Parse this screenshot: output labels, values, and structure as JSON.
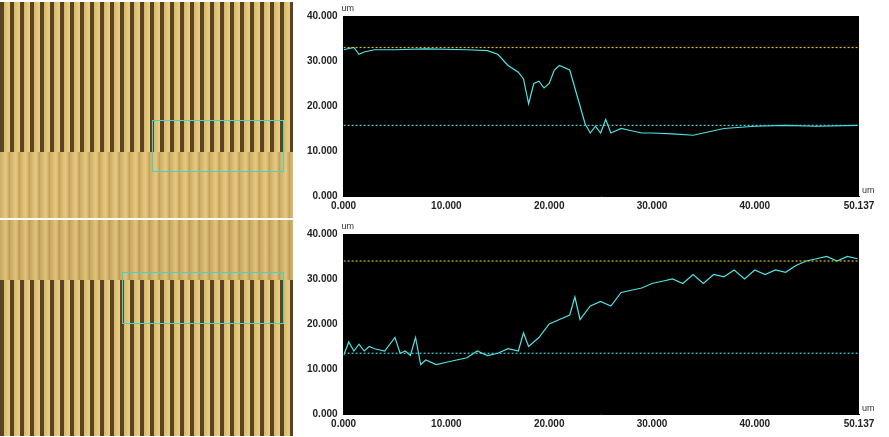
{
  "chart_data": [
    {
      "type": "line",
      "x_label": "um",
      "y_label": "um",
      "grid": false,
      "tick_labels": true,
      "xlim": [
        0,
        50.137
      ],
      "xticks": [
        {
          "value": 0,
          "label": "0.000"
        },
        {
          "value": 10,
          "label": "10.000"
        },
        {
          "value": 20,
          "label": "20.000"
        },
        {
          "value": 30,
          "label": "30.000"
        },
        {
          "value": 40,
          "label": "40.000"
        },
        50.137
      ],
      "ylim": [
        0,
        40
      ],
      "yticks": [
        {
          "value": 0,
          "label": "0.000"
        },
        {
          "value": 10,
          "label": "10.000"
        },
        {
          "value": 20,
          "label": "20.000"
        },
        {
          "value": 30,
          "label": "30.000"
        },
        {
          "value": 40,
          "label": "40.000"
        }
      ],
      "reference_lines": [
        {
          "value": 33,
          "color": "#d9c21a",
          "line_style": "dotted"
        },
        {
          "value": 15.7,
          "color": "#3fd6e0",
          "line_style": "dotted"
        }
      ],
      "series": [
        {
          "color": "#4fe3e3",
          "x": [
            0,
            1,
            1.5,
            2,
            3,
            5,
            8,
            12,
            14,
            15,
            16,
            17,
            17.5,
            18,
            18.5,
            19,
            19.5,
            20,
            20.5,
            21,
            22,
            23,
            23.5,
            24,
            24.5,
            25,
            25.5,
            26,
            27,
            28,
            29,
            30,
            32,
            34,
            35,
            37,
            40,
            43,
            46,
            50
          ],
          "values": [
            32.5,
            33,
            31.5,
            32,
            32.5,
            32.5,
            32.7,
            32.5,
            32.3,
            31.5,
            29,
            27.5,
            26,
            20.5,
            25,
            25.5,
            24,
            25,
            28,
            29,
            28,
            20,
            16,
            14,
            15.5,
            14,
            17,
            14,
            15,
            14.5,
            14,
            14,
            13.8,
            13.5,
            14,
            15,
            15.5,
            15.7,
            15.5,
            15.7
          ]
        }
      ]
    },
    {
      "type": "line",
      "x_label": "um",
      "y_label": "um",
      "grid": false,
      "tick_labels": true,
      "xlim": [
        0,
        50.137
      ],
      "xticks": [
        {
          "value": 0,
          "label": "0.000"
        },
        {
          "value": 10,
          "label": "10.000"
        },
        {
          "value": 20,
          "label": "20.000"
        },
        {
          "value": 30,
          "label": "30.000"
        },
        {
          "value": 40,
          "label": "40.000"
        },
        50.137
      ],
      "ylim": [
        0,
        40
      ],
      "yticks": [
        {
          "value": 0,
          "label": "0.000"
        },
        {
          "value": 10,
          "label": "10.000"
        },
        {
          "value": 20,
          "label": "20.000"
        },
        {
          "value": 30,
          "label": "30.000"
        },
        {
          "value": 40,
          "label": "40.000"
        }
      ],
      "reference_lines": [
        {
          "value": 34,
          "color": "#d9c21a",
          "line_style": "dotted"
        },
        {
          "value": 13.5,
          "color": "#3fd6e0",
          "line_style": "dotted"
        }
      ],
      "series": [
        {
          "color": "#4fe3e3",
          "x": [
            0,
            0.5,
            1,
            1.5,
            2,
            2.5,
            3,
            4,
            5,
            5.5,
            6,
            6.5,
            7,
            7.5,
            8,
            9,
            10,
            11,
            12,
            13,
            14,
            15,
            16,
            17,
            17.5,
            18,
            19,
            20,
            21,
            22,
            22.5,
            23,
            24,
            25,
            26,
            27,
            28,
            29,
            30,
            31,
            32,
            33,
            34,
            35,
            36,
            37,
            38,
            39,
            40,
            41,
            42,
            43,
            44,
            45,
            46,
            47,
            48,
            49,
            50
          ],
          "values": [
            13,
            16,
            14,
            15.5,
            14,
            15,
            14.5,
            14,
            17,
            13.5,
            14,
            13,
            17,
            11,
            12,
            11,
            11.5,
            12,
            12.5,
            14,
            13,
            13.5,
            14.5,
            14,
            18,
            15,
            17,
            20,
            21,
            22,
            26,
            21,
            24,
            25,
            24,
            27,
            27.5,
            28,
            29,
            29.5,
            30,
            29,
            31,
            29,
            31,
            30.5,
            32,
            30,
            32,
            31,
            32,
            31.5,
            33,
            34,
            34.5,
            35,
            34,
            35,
            34.5
          ]
        }
      ]
    }
  ]
}
